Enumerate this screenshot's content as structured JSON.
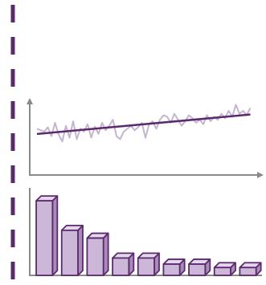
{
  "chart_data": [
    {
      "type": "line",
      "x": [
        0,
        1,
        2,
        3,
        4,
        5,
        6,
        7,
        8,
        9,
        10,
        11,
        12,
        13,
        14,
        15,
        16,
        17,
        18,
        19,
        20,
        21,
        22,
        23,
        24,
        25,
        26,
        27,
        28,
        29,
        30,
        31,
        32,
        33,
        34,
        35,
        36,
        37,
        38,
        39,
        40,
        41,
        42,
        43,
        44,
        45,
        46,
        47,
        48,
        49,
        50,
        51,
        52,
        53,
        54,
        55,
        56,
        57,
        58,
        59
      ],
      "series": [
        {
          "color": "#c6b4d2",
          "values": [
            62,
            60,
            58,
            64,
            52,
            70,
            54,
            45,
            66,
            50,
            72,
            48,
            62,
            58,
            68,
            50,
            65,
            55,
            70,
            60,
            66,
            74,
            52,
            48,
            58,
            62,
            66,
            60,
            64,
            70,
            50,
            68,
            72,
            62,
            74,
            80,
            78,
            70,
            82,
            74,
            66,
            72,
            80,
            76,
            70,
            74,
            68,
            80,
            72,
            78,
            74,
            82,
            76,
            86,
            78,
            94,
            82,
            86,
            80,
            90
          ]
        }
      ],
      "trend": {
        "color": "#5b2a6e",
        "x": [
          0,
          59
        ],
        "values": [
          55,
          81
        ]
      },
      "xlim": [
        -2,
        62
      ],
      "ylim": [
        0,
        100
      ]
    },
    {
      "type": "bar3d",
      "categories": [
        null,
        null,
        null,
        null,
        null,
        null,
        null,
        null,
        null
      ],
      "values": [
        86,
        52,
        43,
        20,
        20,
        13,
        13,
        9,
        9
      ],
      "color": "#cdb7d9",
      "ylim": [
        0,
        100
      ]
    }
  ]
}
